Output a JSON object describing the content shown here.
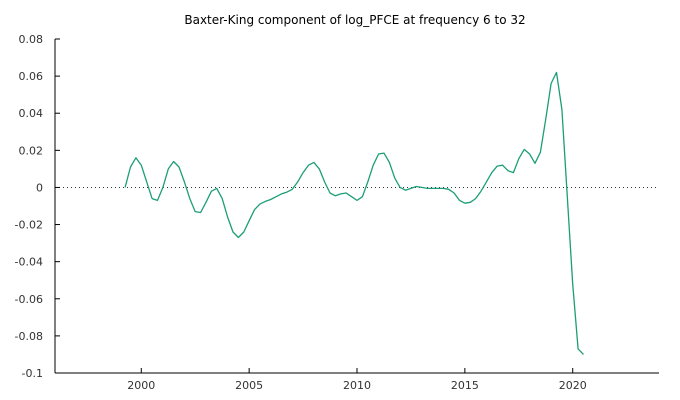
{
  "chart_data": {
    "type": "line",
    "title": "Baxter-King component of log_PFCE at frequency 6 to 32",
    "xlabel": "",
    "ylabel": "",
    "xlim": [
      1996,
      2024
    ],
    "ylim": [
      -0.1,
      0.08
    ],
    "x_ticks": [
      2000,
      2005,
      2010,
      2015,
      2020
    ],
    "y_ticks": [
      0.08,
      0.06,
      0.04,
      0.02,
      0,
      -0.02,
      -0.04,
      -0.06,
      -0.08,
      -0.1
    ],
    "y_tick_labels": [
      "0.08",
      "0.06",
      "0.04",
      "0.02",
      "0",
      "-0.02",
      "-0.04",
      "-0.06",
      "-0.08",
      "-0.1"
    ],
    "zero_line": true,
    "grid": false,
    "legend": "none",
    "series": [
      {
        "color": "#1b9e77",
        "x": [
          1999.25,
          1999.5,
          1999.75,
          2000.0,
          2000.25,
          2000.5,
          2000.75,
          2001.0,
          2001.25,
          2001.5,
          2001.75,
          2002.0,
          2002.25,
          2002.5,
          2002.75,
          2003.0,
          2003.25,
          2003.5,
          2003.75,
          2004.0,
          2004.25,
          2004.5,
          2004.75,
          2005.0,
          2005.25,
          2005.5,
          2005.75,
          2006.0,
          2006.25,
          2006.5,
          2006.75,
          2007.0,
          2007.25,
          2007.5,
          2007.75,
          2008.0,
          2008.25,
          2008.5,
          2008.75,
          2009.0,
          2009.25,
          2009.5,
          2009.75,
          2010.0,
          2010.25,
          2010.5,
          2010.75,
          2011.0,
          2011.25,
          2011.5,
          2011.75,
          2012.0,
          2012.25,
          2012.5,
          2012.75,
          2013.0,
          2013.25,
          2013.5,
          2013.75,
          2014.0,
          2014.25,
          2014.5,
          2014.75,
          2015.0,
          2015.25,
          2015.5,
          2015.75,
          2016.0,
          2016.25,
          2016.5,
          2016.75,
          2017.0,
          2017.25,
          2017.5,
          2017.75,
          2018.0,
          2018.25,
          2018.5,
          2018.75,
          2019.0,
          2019.25,
          2019.5,
          2019.75,
          2020.0,
          2020.25,
          2020.5
        ],
        "y": [
          0.0,
          0.011,
          0.016,
          0.012,
          0.003,
          -0.006,
          -0.007,
          0.0,
          0.01,
          0.014,
          0.011,
          0.003,
          -0.006,
          -0.013,
          -0.0135,
          -0.008,
          -0.002,
          -0.0005,
          -0.006,
          -0.016,
          -0.024,
          -0.027,
          -0.024,
          -0.018,
          -0.012,
          -0.009,
          -0.0075,
          -0.0065,
          -0.005,
          -0.0035,
          -0.0025,
          -0.001,
          0.003,
          0.008,
          0.012,
          0.0135,
          0.01,
          0.003,
          -0.003,
          -0.0045,
          -0.0035,
          -0.003,
          -0.005,
          -0.007,
          -0.005,
          0.003,
          0.012,
          0.018,
          0.0185,
          0.0135,
          0.005,
          0.0,
          -0.0015,
          -0.0005,
          0.0005,
          0.0,
          -0.0005,
          -0.0005,
          -0.0005,
          -0.0005,
          -0.001,
          -0.003,
          -0.007,
          -0.0085,
          -0.008,
          -0.006,
          -0.002,
          0.003,
          0.008,
          0.0115,
          0.012,
          0.009,
          0.008,
          0.0155,
          0.0205,
          0.018,
          0.013,
          0.019,
          0.037,
          0.056,
          0.062,
          0.042,
          -0.005,
          -0.052,
          -0.087,
          -0.09
        ]
      }
    ]
  }
}
